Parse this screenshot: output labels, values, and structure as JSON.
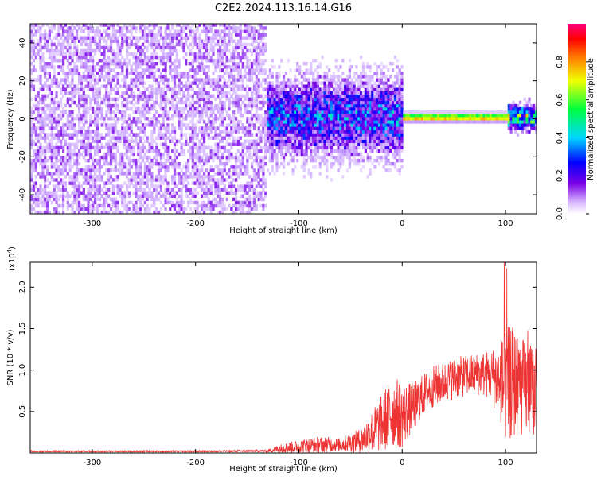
{
  "figure": {
    "title": "C2E2.2024.113.16.14.G16"
  },
  "chart_data": [
    {
      "type": "heatmap",
      "xlabel": "Height of straight line (km)",
      "ylabel": "Frequency (Hz)",
      "xlim": [
        -360,
        130
      ],
      "ylim": [
        -50,
        50
      ],
      "xticks": [
        -300,
        -200,
        -100,
        0,
        100
      ],
      "xtick_labels": [
        "-300",
        "-200",
        "-100",
        "0",
        "100"
      ],
      "yticks": [
        -40,
        -20,
        0,
        20,
        40
      ],
      "ytick_labels": [
        "-40",
        "-20",
        "0",
        "20",
        "40"
      ],
      "colorbar": {
        "label": "Normalized spectral amplitude",
        "range": [
          0,
          1
        ],
        "ticks": [
          0.0,
          0.2,
          0.4,
          0.6,
          0.8
        ],
        "tick_labels": [
          "0.0",
          "0.2",
          "0.4",
          "0.6",
          "0.8"
        ],
        "colors": [
          "#ffffff",
          "#c8a0ff",
          "#7a00e6",
          "#0000ff",
          "#00d8ff",
          "#00ff40",
          "#f0ff00",
          "#ff8000",
          "#ff0000",
          "#ff0080"
        ]
      },
      "regions": [
        {
          "x_range": [
            -360,
            -132
          ],
          "description_level": "broadband",
          "amplitude": 0.15
        },
        {
          "x_range": [
            -132,
            0
          ],
          "description_level": "spread",
          "freq_spread_hz": 12,
          "amplitude": 0.3
        },
        {
          "x_range": [
            0,
            100
          ],
          "description_level": "narrow",
          "center_freq_hz": 0,
          "amplitude": 0.9
        },
        {
          "x_range": [
            100,
            130
          ],
          "description_level": "spread",
          "freq_spread_hz": 4,
          "amplitude": 0.45
        }
      ],
      "legend": "none",
      "grid": false
    },
    {
      "type": "line",
      "xlabel": "Height of straight line (km)",
      "ylabel": "SNR (10 * v/v)",
      "y_multiplier_label": "(x10",
      "y_multiplier_exponent": "4",
      "y_multiplier_close": ")",
      "xlim": [
        -360,
        130
      ],
      "ylim": [
        0,
        2.3
      ],
      "xticks": [
        -300,
        -200,
        -100,
        0,
        100
      ],
      "xtick_labels": [
        "-300",
        "-200",
        "-100",
        "0",
        "100"
      ],
      "yticks": [
        0.5,
        1.0,
        1.5,
        2.0
      ],
      "ytick_labels": [
        "0.5",
        "1.0",
        "1.5",
        "2.0"
      ],
      "color": "#ee3333",
      "envelope": [
        {
          "x": -360,
          "mean": 0.02,
          "spread": 0.01
        },
        {
          "x": -200,
          "mean": 0.02,
          "spread": 0.01
        },
        {
          "x": -130,
          "mean": 0.025,
          "spread": 0.015
        },
        {
          "x": -120,
          "mean": 0.05,
          "spread": 0.05
        },
        {
          "x": -100,
          "mean": 0.08,
          "spread": 0.08
        },
        {
          "x": -80,
          "mean": 0.1,
          "spread": 0.1
        },
        {
          "x": -60,
          "mean": 0.1,
          "spread": 0.08
        },
        {
          "x": -40,
          "mean": 0.15,
          "spread": 0.15
        },
        {
          "x": -20,
          "mean": 0.35,
          "spread": 0.35
        },
        {
          "x": -10,
          "mean": 0.5,
          "spread": 0.45
        },
        {
          "x": 0,
          "mean": 0.45,
          "spread": 0.4
        },
        {
          "x": 10,
          "mean": 0.55,
          "spread": 0.3
        },
        {
          "x": 20,
          "mean": 0.7,
          "spread": 0.25
        },
        {
          "x": 30,
          "mean": 0.8,
          "spread": 0.25
        },
        {
          "x": 50,
          "mean": 0.9,
          "spread": 0.25
        },
        {
          "x": 70,
          "mean": 0.95,
          "spread": 0.25
        },
        {
          "x": 85,
          "mean": 0.95,
          "spread": 0.3
        },
        {
          "x": 95,
          "mean": 0.85,
          "spread": 0.5
        },
        {
          "x": 100,
          "mean": 0.8,
          "spread": 0.7
        },
        {
          "x": 105,
          "mean": 0.85,
          "spread": 0.7
        },
        {
          "x": 115,
          "mean": 0.8,
          "spread": 0.6
        },
        {
          "x": 125,
          "mean": 0.75,
          "spread": 0.55
        },
        {
          "x": 130,
          "mean": 0.7,
          "spread": 0.5
        }
      ],
      "legend": "none",
      "grid": false
    }
  ]
}
